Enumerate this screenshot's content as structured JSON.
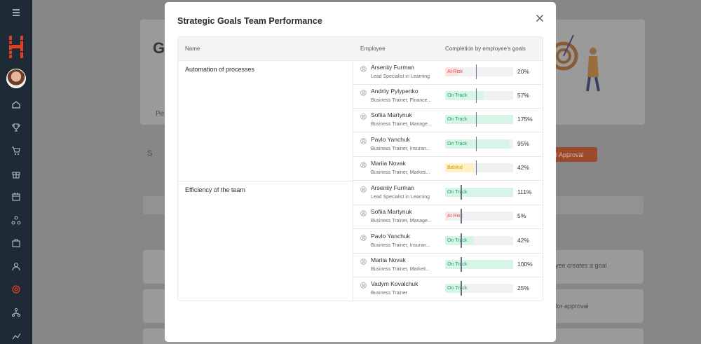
{
  "modal": {
    "title": "Strategic Goals Team Performance",
    "columns": [
      "Name",
      "Employee",
      "Completion by employee's goals"
    ]
  },
  "status_colors": {
    "At Risk": {
      "bg": "#fde2e2",
      "fg": "#e04848"
    },
    "On Track": {
      "bg": "#d6f5e6",
      "fg": "#1f9c64"
    },
    "Behind": {
      "bg": "#fff1c2",
      "fg": "#c99500"
    }
  },
  "groups": [
    {
      "goal": "Automation of processes",
      "rows": [
        {
          "name": "Arseniiy Furman",
          "role": "Lead Specialist in Learning",
          "status": "At Risk",
          "percent": 20
        },
        {
          "name": "Andriiy Pylypenko",
          "role": "Business Trainer, Finance...",
          "status": "On Track",
          "percent": 57
        },
        {
          "name": "Sofiia Martynuk",
          "role": "Business Trainer, Manage...",
          "status": "On Track",
          "percent": 175
        },
        {
          "name": "Pavlo Yanchuk",
          "role": "Business Trainer, Insuran...",
          "status": "On Track",
          "percent": 95
        },
        {
          "name": "Mariia Novak",
          "role": "Business Trainer, Marketi...",
          "status": "Behind",
          "percent": 42
        }
      ]
    },
    {
      "goal": "Efficiency of the team",
      "rows": [
        {
          "name": "Arseniiy Furman",
          "role": "Lead Specialist in Learning",
          "status": "On Track",
          "percent": 111
        },
        {
          "name": "Sofiia Martynuk",
          "role": "Business Trainer, Manage...",
          "status": "At Risk",
          "percent": 5
        },
        {
          "name": "Pavlo Yanchuk",
          "role": "Business Trainer, Insuran...",
          "status": "On Track",
          "percent": 42
        },
        {
          "name": "Mariia Novak",
          "role": "Business Trainer, Marketi...",
          "status": "On Track",
          "percent": 100
        },
        {
          "name": "Vadym Kovalchuk",
          "role": "Business Trainer",
          "status": "On Track",
          "percent": 25
        }
      ]
    }
  ],
  "background": {
    "heading": "Go",
    "tab": "Per",
    "search": "S",
    "approval_button": "al Approval",
    "row1": "yee creates a goal",
    "row2": "for approval"
  },
  "sidebar_icons": [
    "menu-icon",
    "home-icon",
    "trophy-icon",
    "cart-icon",
    "gift-icon",
    "calendar-icon",
    "network-icon",
    "briefcase-icon",
    "user-icon",
    "target-icon",
    "org-chart-icon",
    "chart-icon"
  ]
}
